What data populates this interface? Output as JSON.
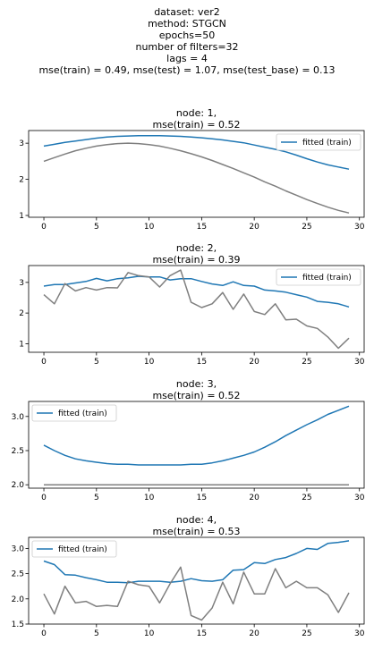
{
  "figure": {
    "suptitle_lines": [
      "dataset: ver2",
      "method: STGCN",
      "epochs=50",
      "number of filters=32",
      "lags = 4",
      "mse(train) = 0.49, mse(test) = 1.07, mse(test_base) = 0.13"
    ]
  },
  "colors": {
    "fitted": "#1f77b4",
    "actual": "#7f7f7f",
    "axis": "#000000"
  },
  "chart_data": [
    {
      "type": "line",
      "title_lines": [
        "node: 1,",
        "mse(train) = 0.52"
      ],
      "xlim": [
        -1.45,
        30.45
      ],
      "ylim": [
        0.95,
        3.35
      ],
      "xticks": [
        0,
        5,
        10,
        15,
        20,
        25,
        30
      ],
      "yticks": [
        1,
        2,
        3
      ],
      "ytick_labels": [
        "1",
        "2",
        "3"
      ],
      "legend": {
        "loc": "upper right",
        "entries": [
          "fitted (train)"
        ]
      },
      "series": [
        {
          "name": "fitted (train)",
          "color": "#1f77b4",
          "x": [
            0,
            1,
            2,
            3,
            4,
            5,
            6,
            7,
            8,
            9,
            10,
            11,
            12,
            13,
            14,
            15,
            16,
            17,
            18,
            19,
            20,
            21,
            22,
            23,
            24,
            25,
            26,
            27,
            28,
            29
          ],
          "y": [
            2.92,
            2.97,
            3.02,
            3.06,
            3.1,
            3.14,
            3.17,
            3.19,
            3.2,
            3.21,
            3.21,
            3.21,
            3.2,
            3.19,
            3.17,
            3.15,
            3.12,
            3.09,
            3.05,
            3.01,
            2.95,
            2.89,
            2.83,
            2.76,
            2.67,
            2.57,
            2.48,
            2.4,
            2.34,
            2.28
          ]
        },
        {
          "color": "#7f7f7f",
          "x": [
            0,
            1,
            2,
            3,
            4,
            5,
            6,
            7,
            8,
            9,
            10,
            11,
            12,
            13,
            14,
            15,
            16,
            17,
            18,
            19,
            20,
            21,
            22,
            23,
            24,
            25,
            26,
            27,
            28,
            29
          ],
          "y": [
            2.5,
            2.6,
            2.7,
            2.79,
            2.86,
            2.92,
            2.96,
            2.99,
            3.0,
            2.99,
            2.96,
            2.92,
            2.86,
            2.79,
            2.71,
            2.62,
            2.52,
            2.41,
            2.3,
            2.18,
            2.06,
            1.93,
            1.81,
            1.68,
            1.56,
            1.44,
            1.33,
            1.23,
            1.14,
            1.07
          ]
        }
      ]
    },
    {
      "type": "line",
      "title_lines": [
        "node: 2,",
        "mse(train) = 0.39"
      ],
      "xlim": [
        -1.45,
        30.45
      ],
      "ylim": [
        0.72,
        3.55
      ],
      "xticks": [
        0,
        5,
        10,
        15,
        20,
        25,
        30
      ],
      "yticks": [
        1,
        2,
        3
      ],
      "ytick_labels": [
        "1",
        "2",
        "3"
      ],
      "legend": {
        "loc": "upper right",
        "entries": [
          "fitted (train)"
        ]
      },
      "series": [
        {
          "name": "fitted (train)",
          "color": "#1f77b4",
          "x": [
            0,
            1,
            2,
            3,
            4,
            5,
            6,
            7,
            8,
            9,
            10,
            11,
            12,
            13,
            14,
            15,
            16,
            17,
            18,
            19,
            20,
            21,
            22,
            23,
            24,
            25,
            26,
            27,
            28,
            29
          ],
          "y": [
            2.88,
            2.93,
            2.93,
            2.98,
            3.03,
            3.13,
            3.05,
            3.12,
            3.15,
            3.2,
            3.18,
            3.18,
            3.08,
            3.12,
            3.12,
            3.03,
            2.95,
            2.9,
            3.02,
            2.9,
            2.88,
            2.75,
            2.72,
            2.68,
            2.6,
            2.52,
            2.38,
            2.35,
            2.3,
            2.2
          ]
        },
        {
          "color": "#7f7f7f",
          "x": [
            0,
            1,
            2,
            3,
            4,
            5,
            6,
            7,
            8,
            9,
            10,
            11,
            12,
            13,
            14,
            15,
            16,
            17,
            18,
            19,
            20,
            21,
            22,
            23,
            24,
            25,
            26,
            27,
            28,
            29
          ],
          "y": [
            2.6,
            2.3,
            2.96,
            2.72,
            2.83,
            2.75,
            2.83,
            2.82,
            3.32,
            3.22,
            3.18,
            2.85,
            3.22,
            3.4,
            2.35,
            2.18,
            2.3,
            2.67,
            2.12,
            2.62,
            2.05,
            1.95,
            2.3,
            1.78,
            1.8,
            1.58,
            1.5,
            1.22,
            0.85,
            1.18
          ]
        }
      ]
    },
    {
      "type": "line",
      "title_lines": [
        "node: 3,",
        "mse(train) = 0.52"
      ],
      "xlim": [
        -1.45,
        30.45
      ],
      "ylim": [
        1.95,
        3.22
      ],
      "xticks": [
        0,
        5,
        10,
        15,
        20,
        25,
        30
      ],
      "yticks": [
        2.0,
        2.5,
        3.0
      ],
      "ytick_labels": [
        "2.0",
        "2.5",
        "3.0"
      ],
      "legend": {
        "loc": "upper left",
        "entries": [
          "fitted (train)"
        ]
      },
      "series": [
        {
          "name": "fitted (train)",
          "color": "#1f77b4",
          "x": [
            0,
            1,
            2,
            3,
            4,
            5,
            6,
            7,
            8,
            9,
            10,
            11,
            12,
            13,
            14,
            15,
            16,
            17,
            18,
            19,
            20,
            21,
            22,
            23,
            24,
            25,
            26,
            27,
            28,
            29
          ],
          "y": [
            2.58,
            2.5,
            2.43,
            2.38,
            2.35,
            2.33,
            2.31,
            2.3,
            2.3,
            2.29,
            2.29,
            2.29,
            2.29,
            2.29,
            2.3,
            2.3,
            2.32,
            2.35,
            2.39,
            2.43,
            2.48,
            2.55,
            2.63,
            2.72,
            2.8,
            2.88,
            2.95,
            3.03,
            3.09,
            3.15
          ]
        },
        {
          "color": "#7f7f7f",
          "x": [
            0,
            1,
            2,
            3,
            4,
            5,
            6,
            7,
            8,
            9,
            10,
            11,
            12,
            13,
            14,
            15,
            16,
            17,
            18,
            19,
            20,
            21,
            22,
            23,
            24,
            25,
            26,
            27,
            28,
            29
          ],
          "y": [
            2.0,
            2.0,
            2.0,
            2.0,
            2.0,
            2.0,
            2.0,
            2.0,
            2.0,
            2.0,
            2.0,
            2.0,
            2.0,
            2.0,
            2.0,
            2.0,
            2.0,
            2.0,
            2.0,
            2.0,
            2.0,
            2.0,
            2.0,
            2.0,
            2.0,
            2.0,
            2.0,
            2.0,
            2.0,
            2.0
          ]
        }
      ]
    },
    {
      "type": "line",
      "title_lines": [
        "node: 4,",
        "mse(train) = 0.53"
      ],
      "xlim": [
        -1.45,
        30.45
      ],
      "ylim": [
        1.5,
        3.22
      ],
      "xticks": [
        0,
        5,
        10,
        15,
        20,
        25,
        30
      ],
      "yticks": [
        1.5,
        2.0,
        2.5,
        3.0
      ],
      "ytick_labels": [
        "1.5",
        "2.0",
        "2.5",
        "3.0"
      ],
      "legend": {
        "loc": "upper left",
        "entries": [
          "fitted (train)"
        ]
      },
      "series": [
        {
          "name": "fitted (train)",
          "color": "#1f77b4",
          "x": [
            0,
            1,
            2,
            3,
            4,
            5,
            6,
            7,
            8,
            9,
            10,
            11,
            12,
            13,
            14,
            15,
            16,
            17,
            18,
            19,
            20,
            21,
            22,
            23,
            24,
            25,
            26,
            27,
            28,
            29
          ],
          "y": [
            2.75,
            2.68,
            2.48,
            2.47,
            2.42,
            2.38,
            2.33,
            2.33,
            2.32,
            2.35,
            2.35,
            2.35,
            2.33,
            2.35,
            2.4,
            2.36,
            2.35,
            2.38,
            2.57,
            2.58,
            2.72,
            2.7,
            2.78,
            2.82,
            2.9,
            3.0,
            2.98,
            3.1,
            3.12,
            3.15
          ]
        },
        {
          "color": "#7f7f7f",
          "x": [
            0,
            1,
            2,
            3,
            4,
            5,
            6,
            7,
            8,
            9,
            10,
            11,
            12,
            13,
            14,
            15,
            16,
            17,
            18,
            19,
            20,
            21,
            22,
            23,
            24,
            25,
            26,
            27,
            28,
            29
          ],
          "y": [
            2.1,
            1.7,
            2.25,
            1.92,
            1.95,
            1.85,
            1.87,
            1.85,
            2.35,
            2.28,
            2.25,
            1.92,
            2.3,
            2.63,
            1.67,
            1.58,
            1.82,
            2.33,
            1.9,
            2.53,
            2.1,
            2.1,
            2.6,
            2.22,
            2.35,
            2.22,
            2.22,
            2.08,
            1.73,
            2.12
          ]
        }
      ]
    }
  ]
}
